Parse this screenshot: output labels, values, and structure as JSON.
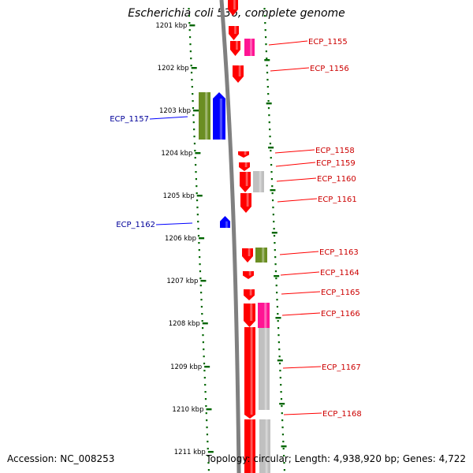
{
  "title": "Escherichia coli 536, complete genome",
  "accession": "Accession: NC_008253",
  "topology": "Topology: circular; Length: 4,938,920 bp; Genes: 4,722",
  "colors": {
    "tick": "#006600",
    "backbone": "#808080",
    "forward_cds": "#ff0000",
    "forward_label": "#cc0000",
    "reverse_cds": "#0000ff",
    "reverse_label": "#000099",
    "olive_feature": "#6b8e23",
    "pink_feature": "#ff1493",
    "grey_feature": "#c0c0c0"
  },
  "scale_ticks": [
    "1201 kbp",
    "1202 kbp",
    "1203 kbp",
    "1204 kbp",
    "1205 kbp",
    "1206 kbp",
    "1207 kbp",
    "1208 kbp",
    "1209 kbp",
    "1210 kbp",
    "1211 kbp"
  ],
  "gene_labels": [
    {
      "name": "ECP_1155",
      "strand": "forward"
    },
    {
      "name": "ECP_1156",
      "strand": "forward"
    },
    {
      "name": "ECP_1157",
      "strand": "reverse"
    },
    {
      "name": "ECP_1158",
      "strand": "forward"
    },
    {
      "name": "ECP_1159",
      "strand": "forward"
    },
    {
      "name": "ECP_1160",
      "strand": "forward"
    },
    {
      "name": "ECP_1161",
      "strand": "forward"
    },
    {
      "name": "ECP_1162",
      "strand": "reverse"
    },
    {
      "name": "ECP_1163",
      "strand": "forward"
    },
    {
      "name": "ECP_1164",
      "strand": "forward"
    },
    {
      "name": "ECP_1165",
      "strand": "forward"
    },
    {
      "name": "ECP_1166",
      "strand": "forward"
    },
    {
      "name": "ECP_1167",
      "strand": "forward"
    },
    {
      "name": "ECP_1168",
      "strand": "forward"
    }
  ]
}
